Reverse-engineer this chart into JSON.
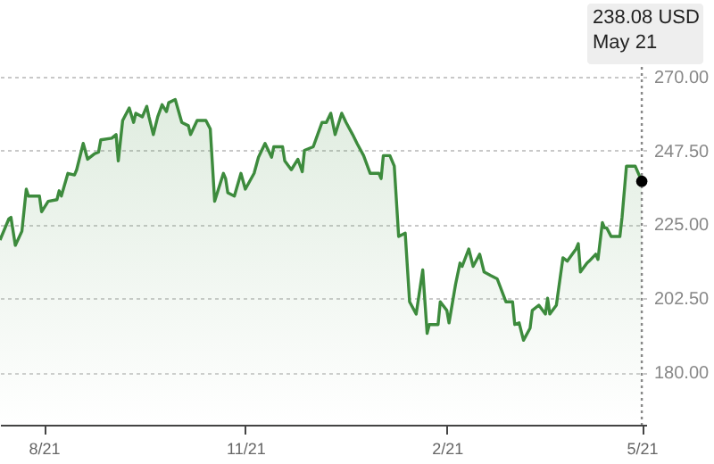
{
  "chart_data": {
    "type": "area",
    "xlim": [
      "2021-07-12",
      "2022-05-03"
    ],
    "ylim": [
      164,
      290
    ],
    "xticks": [
      {
        "value": "2021-08",
        "label": "8/21"
      },
      {
        "value": "2021-11",
        "label": "11/21"
      },
      {
        "value": "2022-02",
        "label": "2/21"
      },
      {
        "value": "2022-05",
        "label": "5/21"
      }
    ],
    "yticks": [
      {
        "value": 180,
        "label": "180.00"
      },
      {
        "value": 202.5,
        "label": "202.50"
      },
      {
        "value": 225,
        "label": "225.00"
      },
      {
        "value": 247.5,
        "label": "247.50"
      },
      {
        "value": 270,
        "label": "270.00"
      }
    ],
    "grid": "y",
    "series": [
      {
        "type": "area",
        "color": "#3d8b3d",
        "x": [
          "2021-07-12",
          "2021-07-16",
          "2021-07-17",
          "2021-07-19",
          "2021-07-22",
          "2021-07-24",
          "2021-07-25",
          "2021-07-30",
          "2021-07-31",
          "2021-08-03",
          "2021-08-07",
          "2021-08-08",
          "2021-08-09",
          "2021-08-12",
          "2021-08-15",
          "2021-08-16",
          "2021-08-19",
          "2021-08-21",
          "2021-08-24",
          "2021-08-26",
          "2021-08-27",
          "2021-09-01",
          "2021-09-03",
          "2021-09-04",
          "2021-09-06",
          "2021-09-09",
          "2021-09-11",
          "2021-09-12",
          "2021-09-15",
          "2021-09-17",
          "2021-09-18",
          "2021-09-20",
          "2021-09-22",
          "2021-09-24",
          "2021-09-26",
          "2021-09-27",
          "2021-09-30",
          "2021-10-03",
          "2021-10-06",
          "2021-10-07",
          "2021-10-10",
          "2021-10-14",
          "2021-10-16",
          "2021-10-18",
          "2021-10-22",
          "2021-10-23",
          "2021-10-24",
          "2021-10-27",
          "2021-10-30",
          "2021-11-01",
          "2021-11-05",
          "2021-11-07",
          "2021-11-10",
          "2021-11-13",
          "2021-11-14",
          "2021-11-18",
          "2021-11-19",
          "2021-11-22",
          "2021-11-25",
          "2021-11-27",
          "2021-11-28",
          "2021-12-02",
          "2021-12-04",
          "2021-12-06",
          "2021-12-08",
          "2021-12-10",
          "2021-12-12",
          "2021-12-15",
          "2021-12-17",
          "2021-12-20",
          "2021-12-22",
          "2021-12-25",
          "2021-12-28",
          "2022-01-01",
          "2022-01-02",
          "2022-01-03",
          "2022-01-06",
          "2022-01-08",
          "2022-01-10",
          "2022-01-13",
          "2022-01-15",
          "2022-01-18",
          "2022-01-21",
          "2022-01-23",
          "2022-01-24",
          "2022-01-28",
          "2022-01-29",
          "2022-02-01",
          "2022-02-02",
          "2022-02-05",
          "2022-02-07",
          "2022-02-08",
          "2022-02-11",
          "2022-02-13",
          "2022-02-16",
          "2022-02-18",
          "2022-02-21",
          "2022-02-24",
          "2022-02-28",
          "2022-03-03",
          "2022-03-04",
          "2022-03-06",
          "2022-03-08",
          "2022-03-11",
          "2022-03-12",
          "2022-03-15",
          "2022-03-18",
          "2022-03-19",
          "2022-03-20",
          "2022-03-23",
          "2022-03-24",
          "2022-03-26",
          "2022-03-28",
          "2022-04-01",
          "2022-04-02",
          "2022-04-03",
          "2022-04-06",
          "2022-04-07",
          "2022-04-10",
          "2022-04-11",
          "2022-04-13",
          "2022-04-14",
          "2022-04-15",
          "2022-04-17",
          "2022-04-21",
          "2022-04-22",
          "2022-04-24",
          "2022-04-28",
          "2022-05-01"
        ],
        "values": [
          220.2,
          226.6,
          227.1,
          218.6,
          222.9,
          235.7,
          233.6,
          233.6,
          228.8,
          232.0,
          232.5,
          235.2,
          233.6,
          240.5,
          240.0,
          241.6,
          249.6,
          244.8,
          246.4,
          247.0,
          250.7,
          251.2,
          252.3,
          244.3,
          256.6,
          260.4,
          256.0,
          258.8,
          257.7,
          260.9,
          257.7,
          252.3,
          257.7,
          261.4,
          259.3,
          262.0,
          263.0,
          256.0,
          255.0,
          252.3,
          256.6,
          256.6,
          254.0,
          232.0,
          240.5,
          238.9,
          234.6,
          233.6,
          240.5,
          235.7,
          240.5,
          245.4,
          249.6,
          245.4,
          248.6,
          248.6,
          244.3,
          241.6,
          244.8,
          241.0,
          247.5,
          248.6,
          252.3,
          256.0,
          256.0,
          258.8,
          252.3,
          258.8,
          256.0,
          252.3,
          249.6,
          245.9,
          240.5,
          240.5,
          238.9,
          245.9,
          245.9,
          242.7,
          221.3,
          222.3,
          201.4,
          197.7,
          211.1,
          191.8,
          194.5,
          194.5,
          201.4,
          198.8,
          195.0,
          206.8,
          213.2,
          212.2,
          217.5,
          212.2,
          215.9,
          210.5,
          209.4,
          208.4,
          201.4,
          201.4,
          194.5,
          195.0,
          189.7,
          193.4,
          198.8,
          200.4,
          197.7,
          202.5,
          197.7,
          200.4,
          205.2,
          214.8,
          213.8,
          217.5,
          219.1,
          210.5,
          213.2,
          213.8,
          215.9,
          214.3,
          225.5,
          223.9,
          223.9,
          221.3,
          221.3,
          227.2,
          242.7,
          242.7,
          238.08
        ]
      },
      {
        "type": "scatter",
        "color": "#000000",
        "x": [
          "2022-05-01"
        ],
        "values": [
          238.08
        ]
      }
    ],
    "ref_lines": [
      {
        "axis": "x",
        "value": "2022-05-01",
        "color": "#888888",
        "line_style": "dotted"
      }
    ],
    "annotations": [
      "238.08 USD",
      "May 21"
    ]
  }
}
